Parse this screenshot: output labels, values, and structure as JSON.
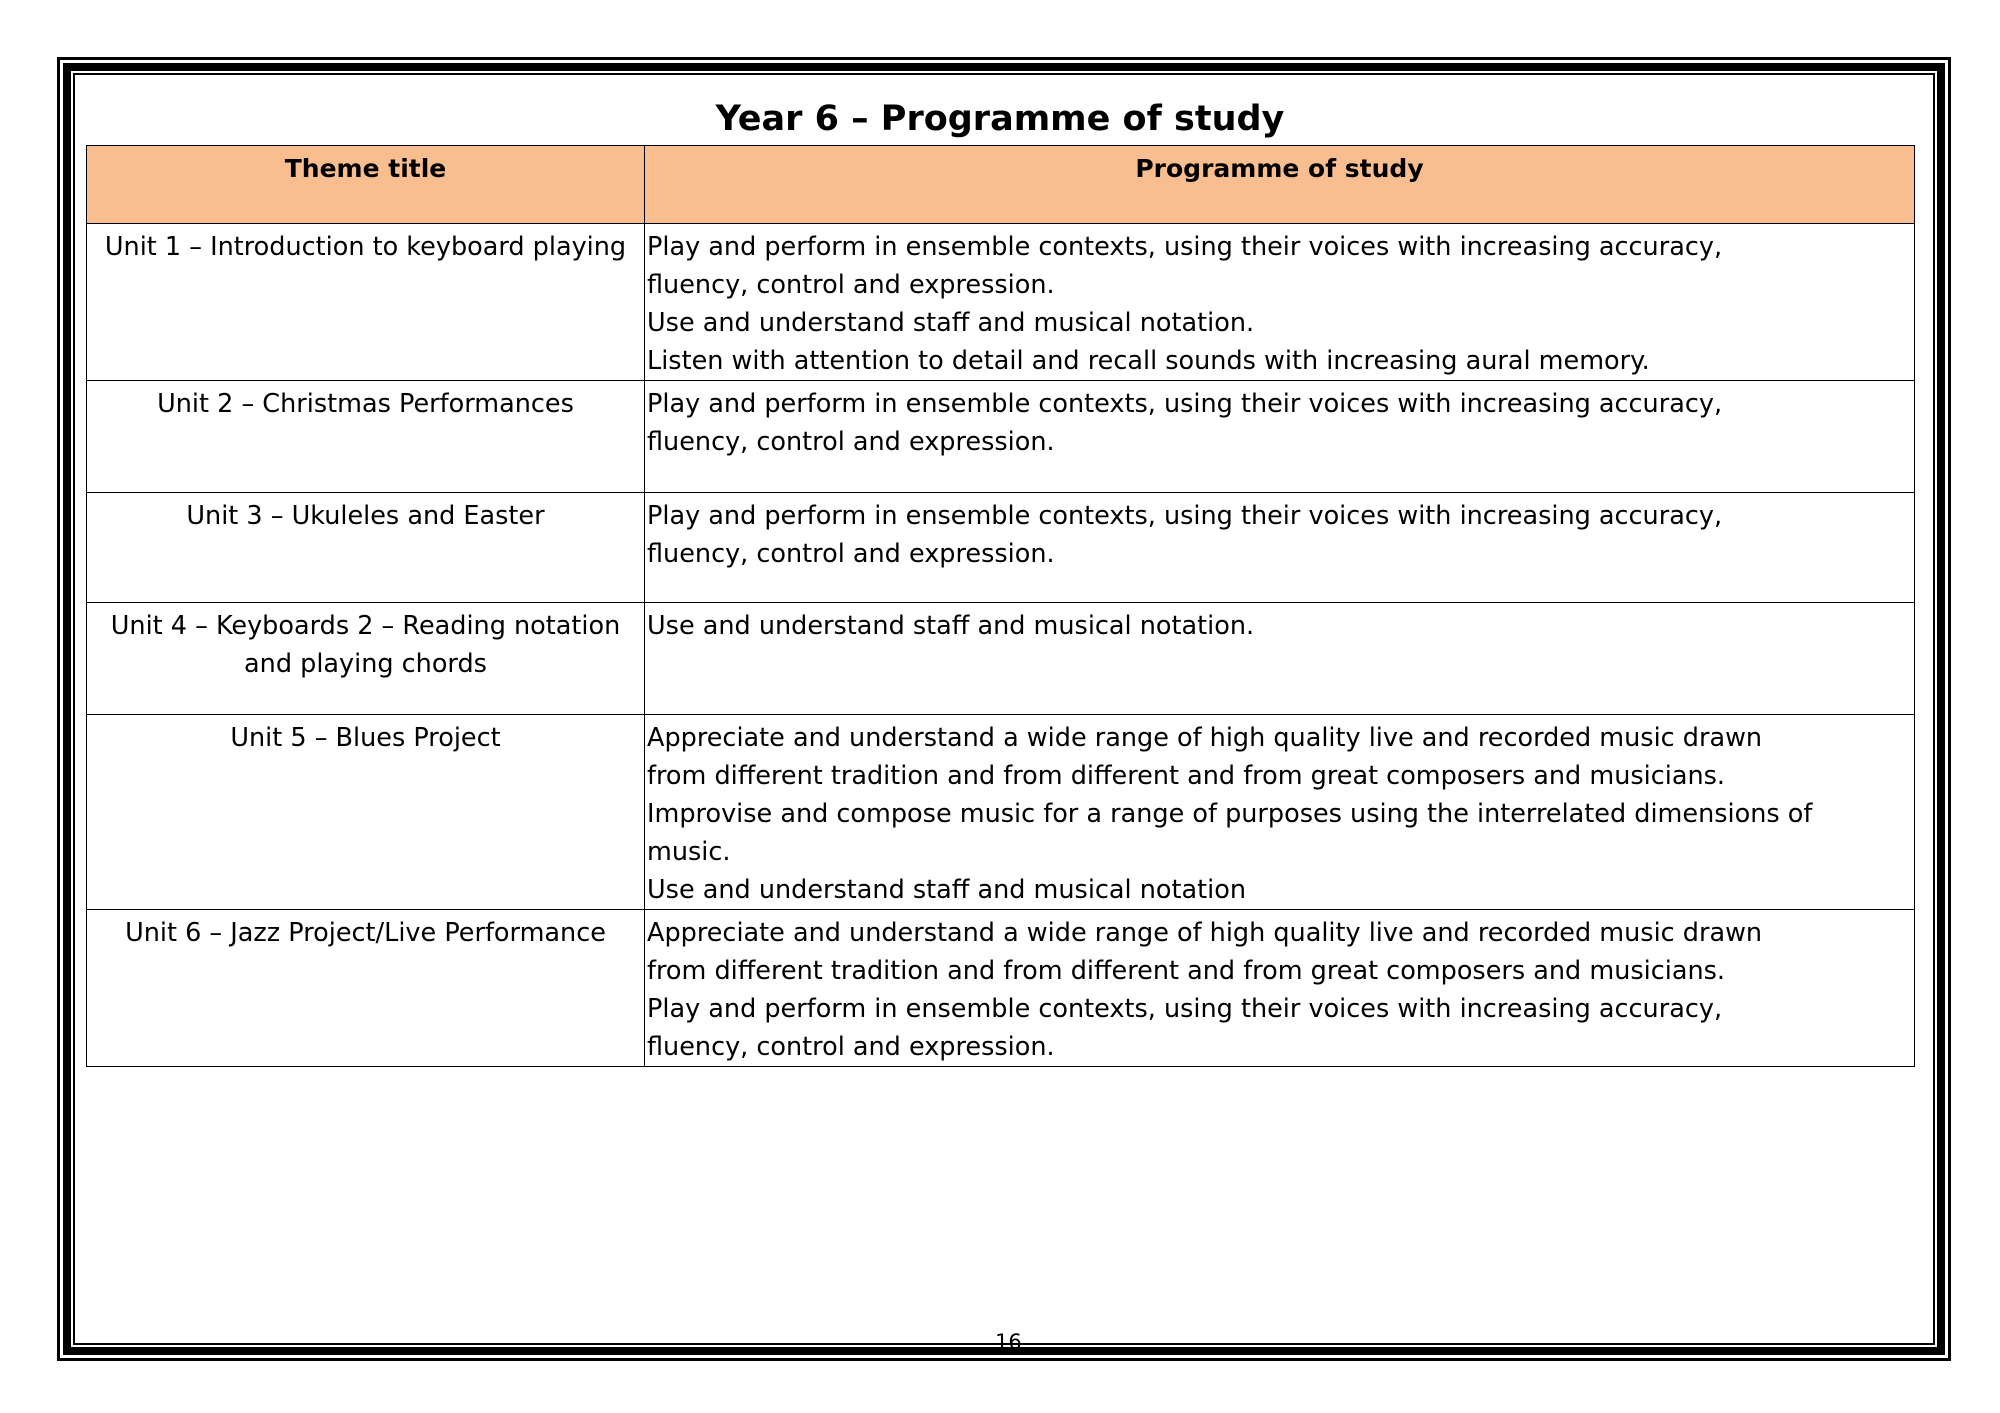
{
  "title": "Year 6 – Programme of study",
  "headers": {
    "theme": "Theme title",
    "programme": "Programme of study"
  },
  "header_color": "#F8BE8F",
  "rows": [
    {
      "theme": "Unit 1 – Introduction to keyboard playing",
      "lines": [
        "Play and perform in ensemble contexts, using their voices with increasing accuracy,",
        "fluency, control and expression.",
        "Use and understand staff and musical notation.",
        "Listen with attention to detail and recall sounds with increasing aural memory."
      ]
    },
    {
      "theme": "Unit 2 – Christmas Performances",
      "lines": [
        "Play and perform in ensemble contexts, using their voices with increasing accuracy,",
        "fluency, control and expression."
      ]
    },
    {
      "theme": "Unit 3 – Ukuleles and Easter",
      "lines": [
        "Play and perform in ensemble contexts, using their voices with increasing accuracy,",
        "fluency, control and expression."
      ]
    },
    {
      "theme": "Unit 4 – Keyboards 2 – Reading notation and playing chords",
      "lines": [
        "Use and understand staff and musical notation."
      ]
    },
    {
      "theme": "Unit 5 – Blues Project",
      "lines": [
        "Appreciate and understand a wide range of high quality live and recorded music drawn",
        "from different tradition and from different and from great composers and musicians.",
        "Improvise and compose music for a range of purposes using the interrelated dimensions of",
        "music.",
        "Use and understand staff and musical notation"
      ]
    },
    {
      "theme": "Unit 6 – Jazz Project/Live Performance",
      "lines": [
        "Appreciate and understand a wide range of high quality live and recorded music drawn",
        "from different tradition and from different and from great composers and musicians.",
        "Play and perform in ensemble contexts, using their voices with increasing accuracy,",
        "fluency, control and expression."
      ]
    }
  ],
  "page_number": "16"
}
